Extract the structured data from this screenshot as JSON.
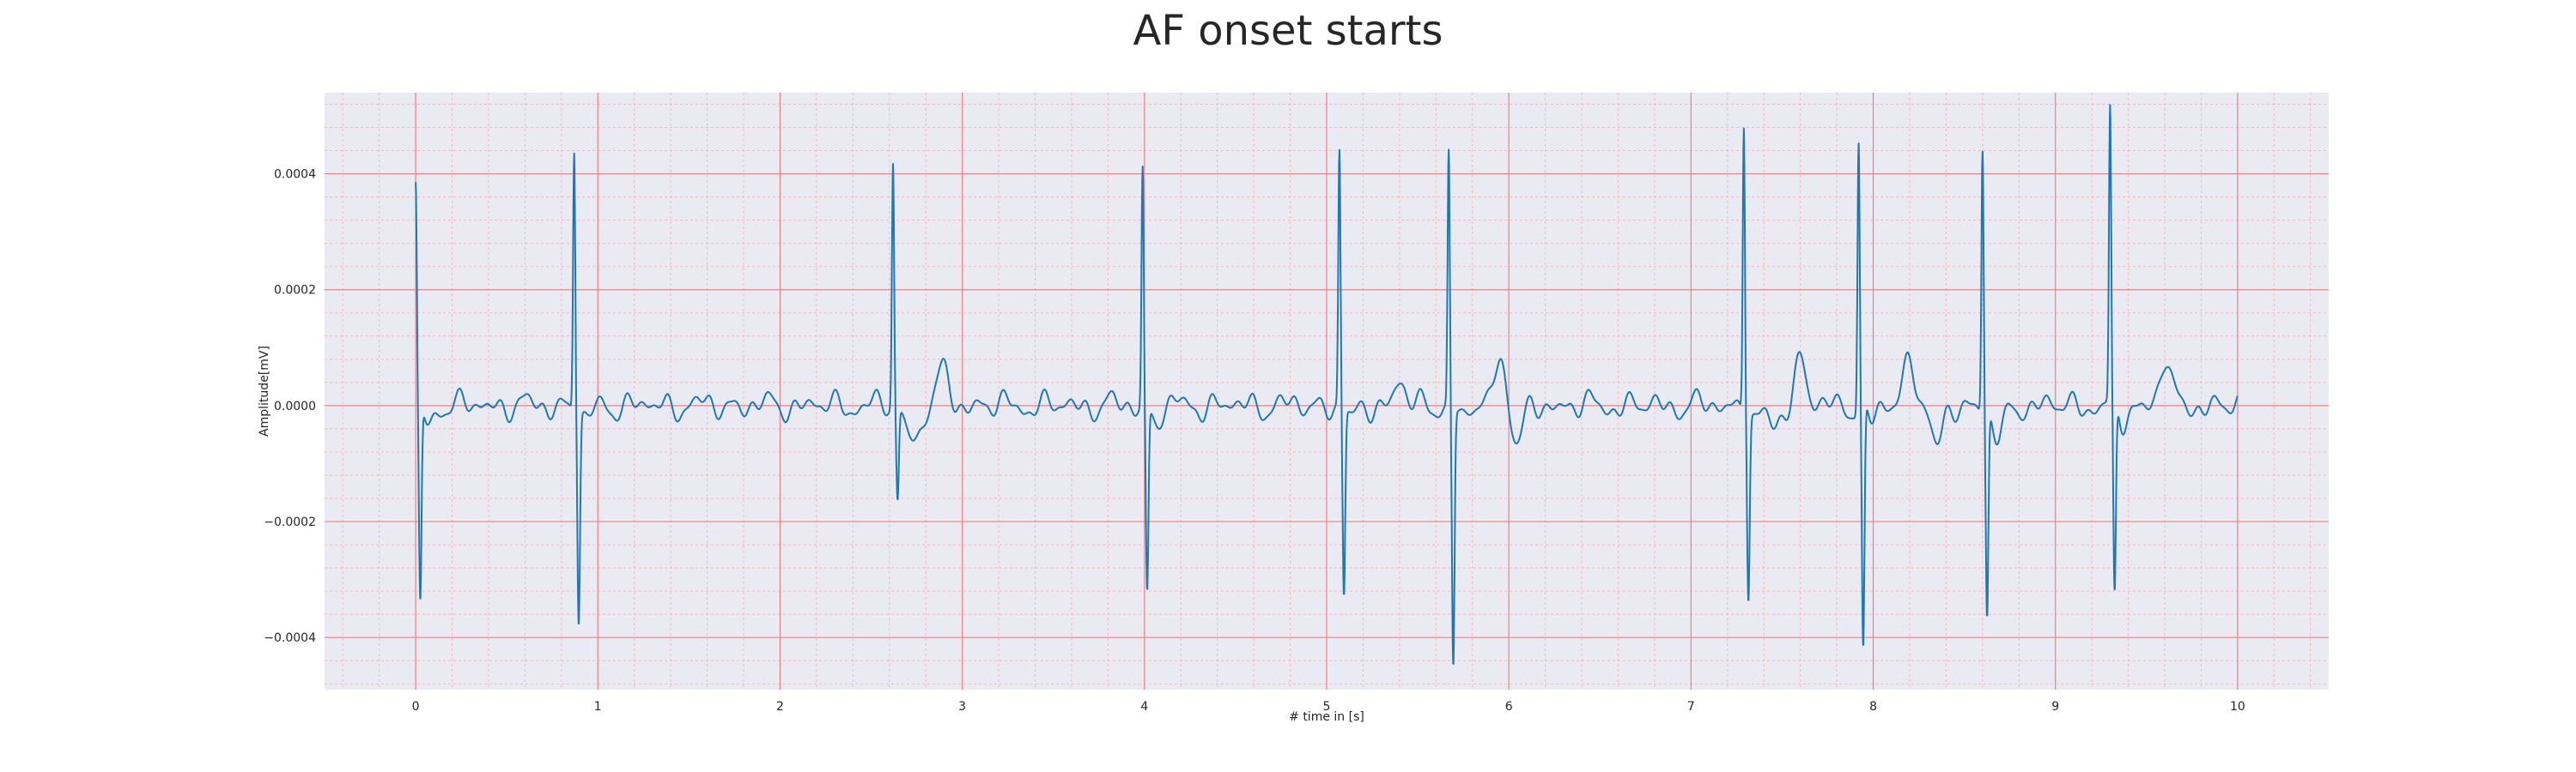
{
  "chart_data": {
    "type": "line",
    "title": "AF onset starts",
    "xlabel": "# time in [s]",
    "ylabel": "Amplitude[mV]",
    "xlim": [
      -0.5,
      10.5
    ],
    "ylim": [
      -0.00049,
      0.00054
    ],
    "x_ticks": [
      "0",
      "1",
      "2",
      "3",
      "4",
      "5",
      "6",
      "7",
      "8",
      "9",
      "10"
    ],
    "y_ticks": [
      "−0.0004",
      "−0.0002",
      "0.0000",
      "0.0002",
      "0.0004"
    ],
    "y_tick_values": [
      -0.0004,
      -0.0002,
      0,
      0.0002,
      0.0004
    ],
    "grid": true,
    "colors": {
      "plot_bg": "#eaeaf2",
      "major_grid": "#f08080",
      "minor_grid": "#f4b8c0",
      "line": "#1f77b4"
    },
    "series": [
      {
        "name": "",
        "beats": [
          {
            "t": 0.0,
            "peak": 0.00037,
            "trough": -0.00035
          },
          {
            "t": 0.87,
            "peak": 0.00045,
            "trough": -0.00036
          },
          {
            "t": 2.62,
            "peak": 0.00042,
            "trough": -0.00016
          },
          {
            "t": 3.99,
            "peak": 0.00041,
            "trough": -0.00032
          },
          {
            "t": 5.07,
            "peak": 0.00044,
            "trough": -0.00032
          },
          {
            "t": 5.67,
            "peak": 0.00044,
            "trough": -0.00044
          },
          {
            "t": 7.29,
            "peak": 0.0005,
            "trough": -0.00031
          },
          {
            "t": 7.92,
            "peak": 0.00046,
            "trough": -0.00043
          },
          {
            "t": 8.6,
            "peak": 0.00045,
            "trough": -0.00036
          },
          {
            "t": 9.3,
            "peak": 0.0005,
            "trough": -0.00034
          }
        ],
        "waves": [
          {
            "t": 2.9,
            "amp": 6e-05
          },
          {
            "t": 5.4,
            "amp": 4e-05
          },
          {
            "t": 5.95,
            "amp": 9e-05
          },
          {
            "t": 7.6,
            "amp": 8e-05
          },
          {
            "t": 8.2,
            "amp": 9e-05
          },
          {
            "t": 9.6,
            "amp": 8e-05
          }
        ],
        "dips": [
          {
            "t": 2.75,
            "amp": -5e-05
          },
          {
            "t": 6.05,
            "amp": -7e-05
          },
          {
            "t": 7.45,
            "amp": -4e-05
          },
          {
            "t": 8.35,
            "amp": -8e-05
          },
          {
            "t": 8.7,
            "amp": -4e-05
          }
        ]
      }
    ]
  }
}
